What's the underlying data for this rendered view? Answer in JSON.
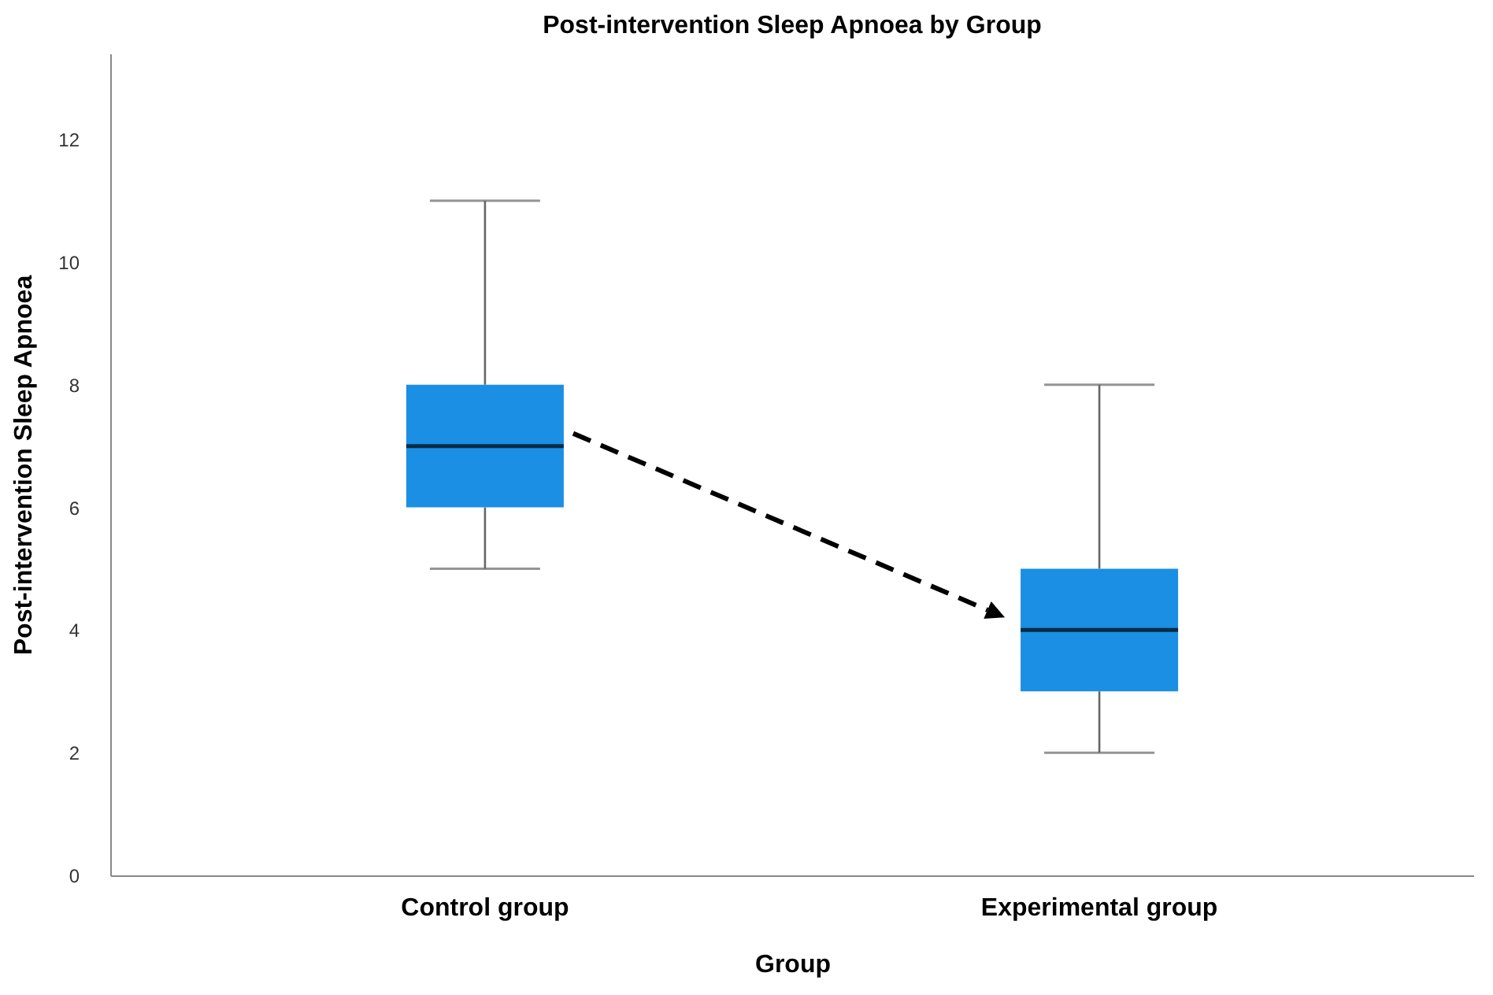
{
  "chart_data": {
    "type": "box",
    "title": "Post-intervention Sleep Apnoea by Group",
    "xlabel": "Group",
    "ylabel": "Post-intervention Sleep Apnoea",
    "categories": [
      "Control group",
      "Experimental group"
    ],
    "series": [
      {
        "color": "#1a8fe3",
        "boxes": [
          {
            "low": 5,
            "q1": 6,
            "median": 7,
            "q3": 8,
            "high": 11
          },
          {
            "low": 2,
            "q1": 3,
            "median": 4,
            "q3": 5,
            "high": 8
          }
        ]
      }
    ],
    "ylim": [
      0,
      13.4
    ],
    "yticks": [
      0,
      2,
      4,
      6,
      8,
      10,
      12
    ],
    "grid": false
  }
}
